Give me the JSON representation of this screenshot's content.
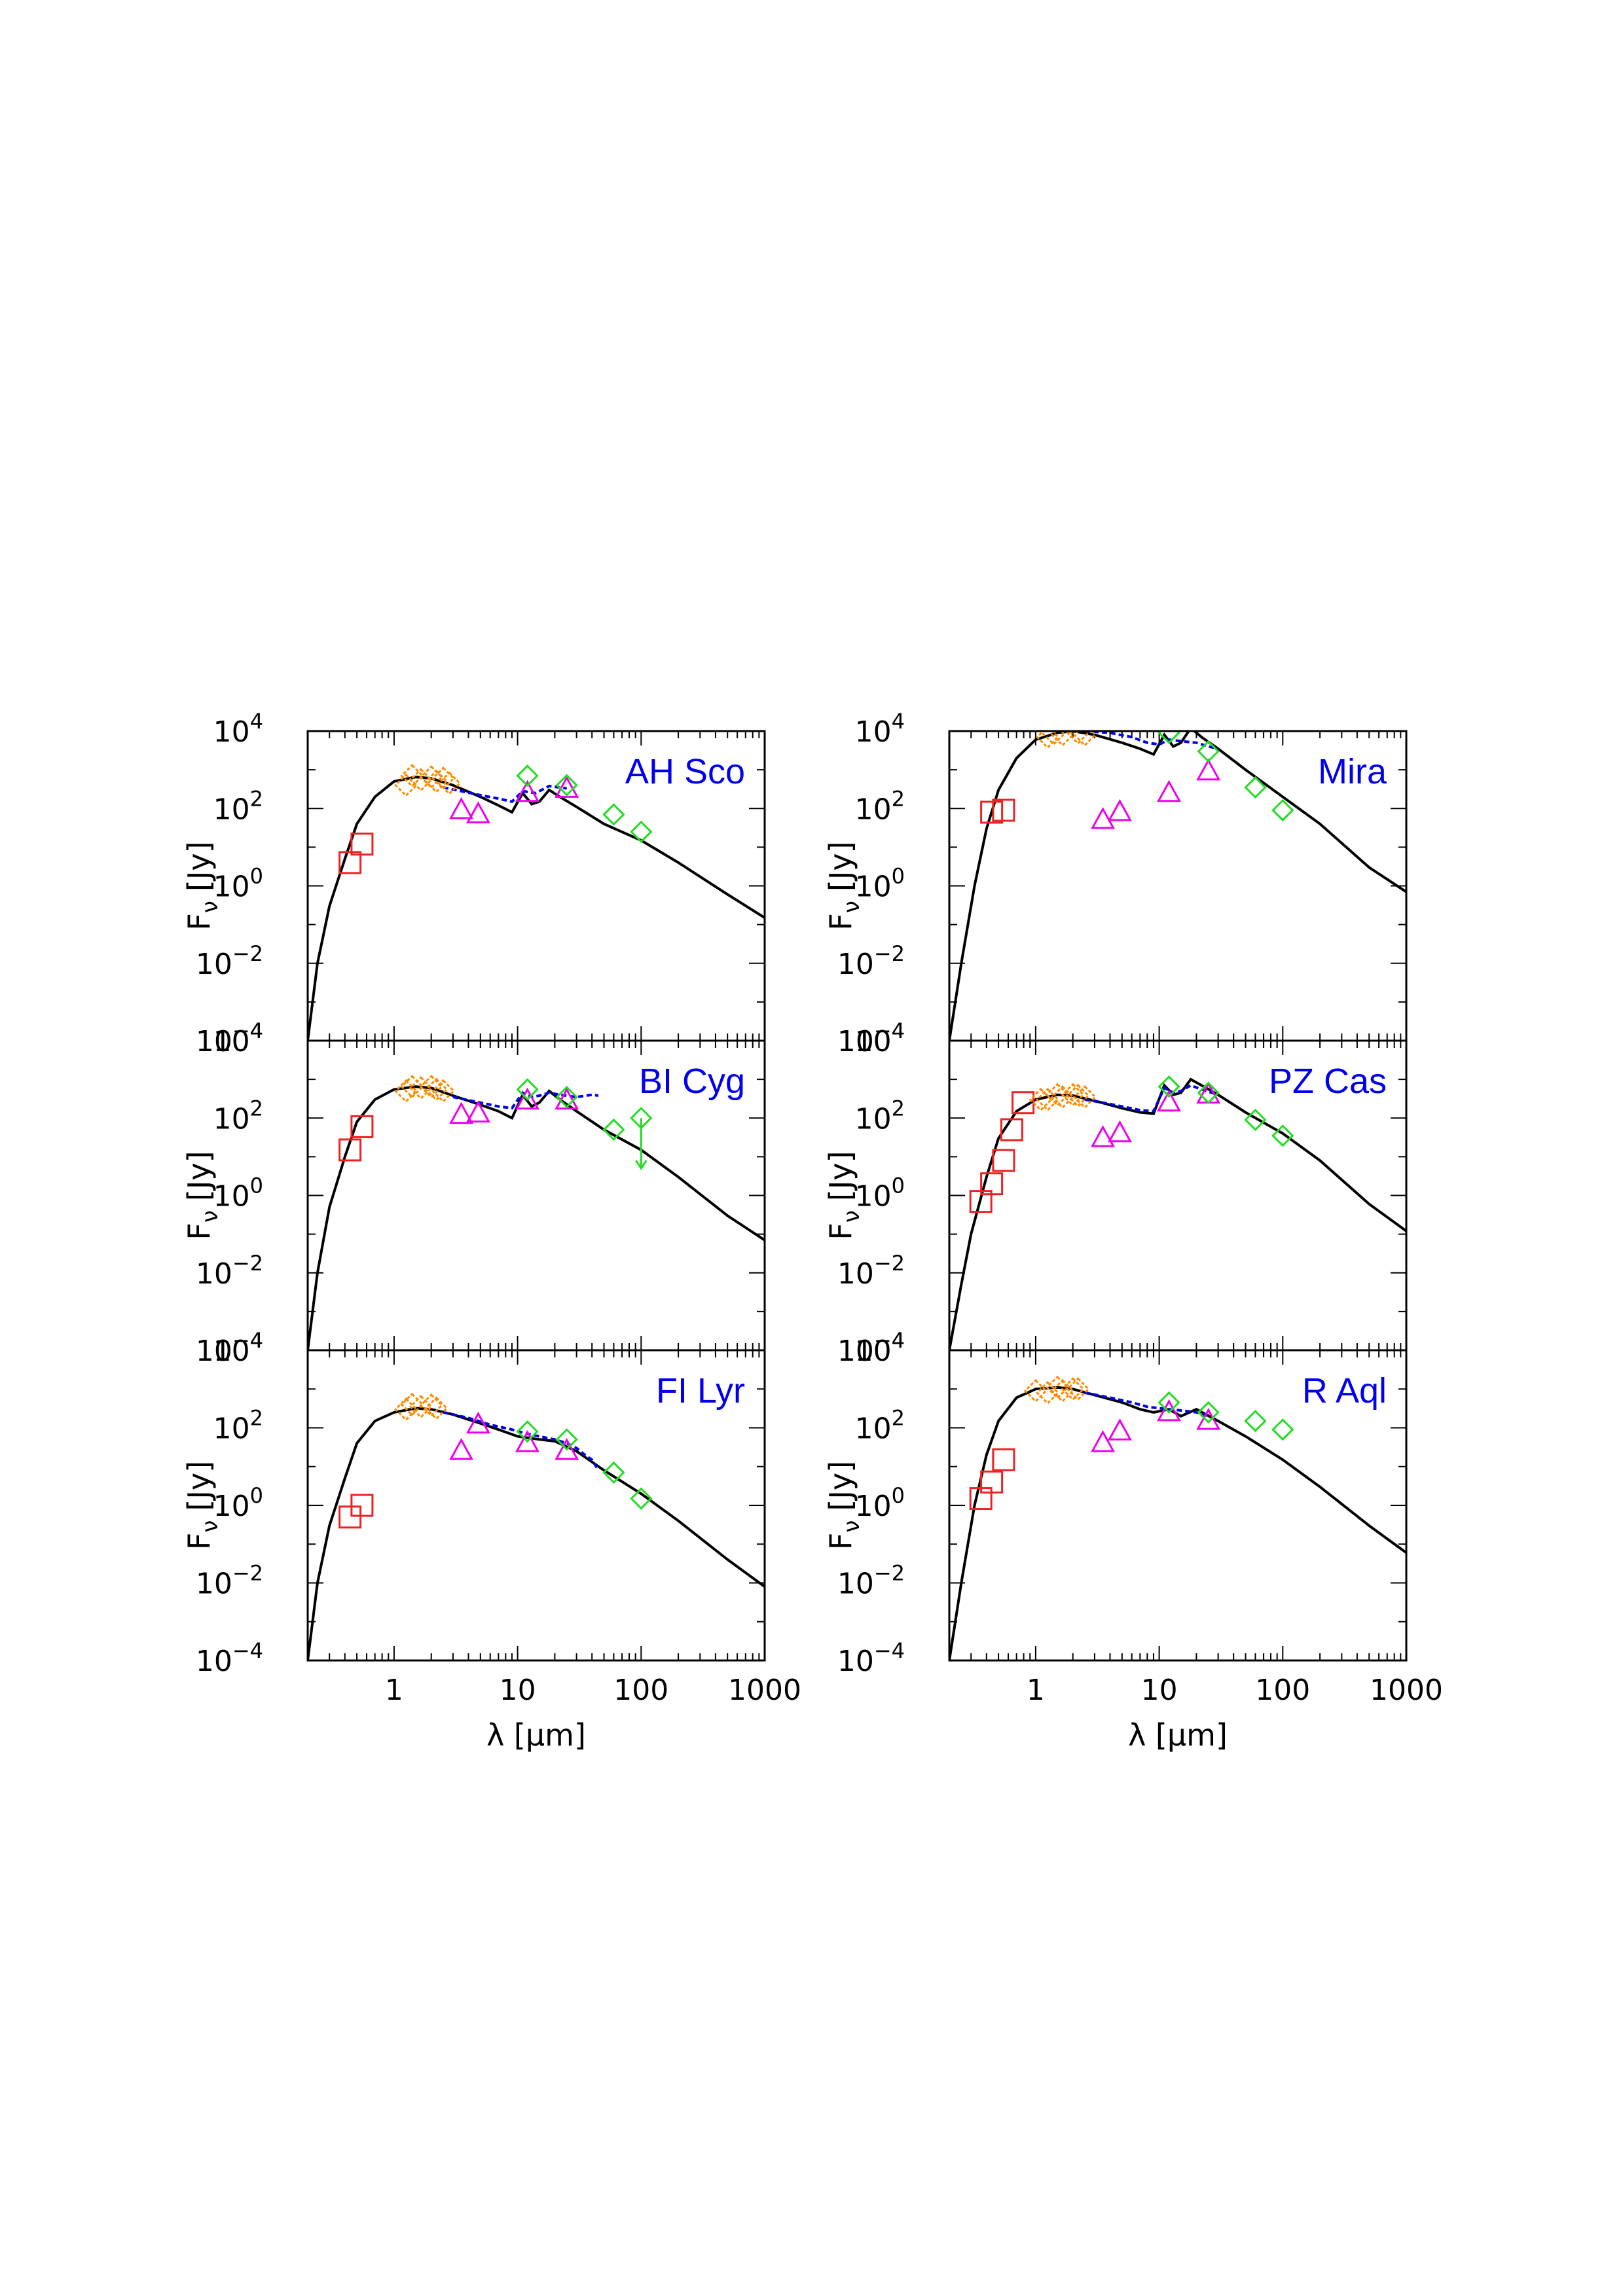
{
  "colors": {
    "model": "#000000",
    "optical": "#ee2222",
    "near_ir": "#ff8c00",
    "mid_ir": "#ee00ee",
    "iras": "#22dd22",
    "spectrum": "#0000ee"
  },
  "axes": {
    "xlabel": "λ [μm]",
    "ylabel_main": "F",
    "ylabel_sub": "ν",
    "ylabel_unit": "[Jy]",
    "x_tick_labels": [
      "1",
      "10",
      "100",
      "1000"
    ],
    "y_tick_base": "10",
    "y_tick_exponents": [
      "4",
      "2",
      "0",
      "−2",
      "−4"
    ]
  },
  "chart_data": [
    {
      "type": "scatter",
      "title": "AH Sco",
      "xscale": "log",
      "yscale": "log",
      "xlim": [
        0.2,
        1000
      ],
      "ylim": [
        0.0001,
        10000
      ],
      "model": [
        [
          0.2,
          0.0001
        ],
        [
          0.24,
          0.01
        ],
        [
          0.3,
          0.3
        ],
        [
          0.4,
          5
        ],
        [
          0.5,
          40
        ],
        [
          0.7,
          200
        ],
        [
          1,
          500
        ],
        [
          1.5,
          650
        ],
        [
          2,
          600
        ],
        [
          3,
          400
        ],
        [
          5,
          200
        ],
        [
          7,
          120
        ],
        [
          9,
          80
        ],
        [
          11,
          250
        ],
        [
          13,
          130
        ],
        [
          15,
          150
        ],
        [
          18,
          300
        ],
        [
          22,
          200
        ],
        [
          30,
          110
        ],
        [
          50,
          40
        ],
        [
          100,
          15
        ],
        [
          200,
          4
        ],
        [
          500,
          0.6
        ],
        [
          1000,
          0.15
        ]
      ],
      "spectrum": [
        [
          2.5,
          350
        ],
        [
          3.5,
          280
        ],
        [
          5,
          220
        ],
        [
          7,
          180
        ],
        [
          9,
          150
        ],
        [
          11,
          280
        ],
        [
          14,
          250
        ],
        [
          18,
          380
        ],
        [
          22,
          350
        ],
        [
          25,
          330
        ]
      ],
      "optical": [
        [
          0.44,
          4
        ],
        [
          0.55,
          12
        ]
      ],
      "near_ir": [
        [
          1.25,
          400
        ],
        [
          1.65,
          550
        ],
        [
          2.2,
          500
        ],
        [
          2.8,
          450
        ],
        [
          1.4,
          700
        ],
        [
          2,
          650
        ],
        [
          2.5,
          600
        ]
      ],
      "mid_ir": [
        [
          3.5,
          90
        ],
        [
          4.8,
          70
        ],
        [
          12,
          250
        ],
        [
          25,
          320
        ]
      ],
      "iras": [
        [
          12,
          700
        ],
        [
          25,
          400
        ],
        [
          60,
          70
        ],
        [
          100,
          25
        ]
      ],
      "upper_limits": []
    },
    {
      "type": "scatter",
      "title": "Mira",
      "xscale": "log",
      "yscale": "log",
      "xlim": [
        0.2,
        1000
      ],
      "ylim": [
        0.0001,
        10000
      ],
      "model": [
        [
          0.2,
          0.0001
        ],
        [
          0.25,
          0.01
        ],
        [
          0.32,
          1
        ],
        [
          0.4,
          30
        ],
        [
          0.5,
          300
        ],
        [
          0.7,
          2000
        ],
        [
          1,
          6000
        ],
        [
          1.5,
          9000
        ],
        [
          2,
          10000
        ],
        [
          3,
          8000
        ],
        [
          5,
          5000
        ],
        [
          7,
          3500
        ],
        [
          9,
          2500
        ],
        [
          11,
          8000
        ],
        [
          13,
          4000
        ],
        [
          15,
          5000
        ],
        [
          18,
          12000
        ],
        [
          22,
          7000
        ],
        [
          30,
          3500
        ],
        [
          50,
          1000
        ],
        [
          100,
          200
        ],
        [
          200,
          40
        ],
        [
          500,
          3
        ],
        [
          1000,
          0.7
        ]
      ],
      "spectrum": [
        [
          2.5,
          10000
        ],
        [
          4,
          9000
        ],
        [
          6,
          7000
        ],
        [
          8,
          5000
        ],
        [
          10,
          4500
        ],
        [
          12,
          6000
        ],
        [
          15,
          5500
        ],
        [
          20,
          5000
        ],
        [
          25,
          4000
        ],
        [
          30,
          3500
        ]
      ],
      "optical": [
        [
          0.44,
          80
        ],
        [
          0.55,
          90
        ]
      ],
      "near_ir": [
        [
          1.25,
          7000
        ],
        [
          1.65,
          8000
        ],
        [
          2.2,
          9000
        ],
        [
          1.4,
          8500
        ],
        [
          2.5,
          8000
        ]
      ],
      "mid_ir": [
        [
          3.5,
          50
        ],
        [
          4.8,
          80
        ],
        [
          12,
          250
        ],
        [
          25,
          900
        ]
      ],
      "iras": [
        [
          12,
          9000
        ],
        [
          25,
          3000
        ],
        [
          60,
          350
        ],
        [
          100,
          90
        ]
      ],
      "upper_limits": []
    },
    {
      "type": "scatter",
      "title": "BI Cyg",
      "xscale": "log",
      "yscale": "log",
      "xlim": [
        0.2,
        1000
      ],
      "ylim": [
        0.0001,
        10000
      ],
      "model": [
        [
          0.2,
          0.0001
        ],
        [
          0.24,
          0.01
        ],
        [
          0.3,
          0.5
        ],
        [
          0.4,
          10
        ],
        [
          0.5,
          80
        ],
        [
          0.7,
          300
        ],
        [
          1,
          550
        ],
        [
          1.5,
          650
        ],
        [
          2,
          600
        ],
        [
          3,
          380
        ],
        [
          5,
          220
        ],
        [
          7,
          150
        ],
        [
          9,
          100
        ],
        [
          11,
          400
        ],
        [
          13,
          200
        ],
        [
          15,
          250
        ],
        [
          18,
          500
        ],
        [
          22,
          300
        ],
        [
          30,
          150
        ],
        [
          50,
          50
        ],
        [
          100,
          15
        ],
        [
          200,
          3
        ],
        [
          500,
          0.3
        ],
        [
          1000,
          0.07
        ]
      ],
      "spectrum": [
        [
          3,
          350
        ],
        [
          5,
          250
        ],
        [
          7,
          200
        ],
        [
          9,
          180
        ],
        [
          11,
          450
        ],
        [
          13,
          350
        ],
        [
          15,
          380
        ],
        [
          18,
          450
        ],
        [
          22,
          400
        ],
        [
          30,
          350
        ],
        [
          40,
          400
        ],
        [
          45,
          380
        ]
      ],
      "optical": [
        [
          0.44,
          15
        ],
        [
          0.55,
          60
        ]
      ],
      "near_ir": [
        [
          1.25,
          500
        ],
        [
          1.65,
          600
        ],
        [
          2.2,
          550
        ],
        [
          1.4,
          650
        ],
        [
          2,
          650
        ],
        [
          2.5,
          500
        ]
      ],
      "mid_ir": [
        [
          3.5,
          120
        ],
        [
          4.8,
          130
        ],
        [
          12,
          280
        ],
        [
          25,
          280
        ]
      ],
      "iras": [
        [
          12,
          550
        ],
        [
          25,
          350
        ],
        [
          60,
          50
        ],
        [
          100,
          100
        ]
      ],
      "upper_limits": [
        [
          100,
          100,
          5
        ]
      ]
    },
    {
      "type": "scatter",
      "title": "PZ Cas",
      "xscale": "log",
      "yscale": "log",
      "xlim": [
        0.2,
        1000
      ],
      "ylim": [
        0.0001,
        10000
      ],
      "model": [
        [
          0.2,
          0.0001
        ],
        [
          0.25,
          0.005
        ],
        [
          0.3,
          0.1
        ],
        [
          0.4,
          3
        ],
        [
          0.5,
          30
        ],
        [
          0.7,
          150
        ],
        [
          1,
          300
        ],
        [
          1.5,
          400
        ],
        [
          2,
          380
        ],
        [
          3,
          280
        ],
        [
          5,
          180
        ],
        [
          7,
          140
        ],
        [
          9,
          130
        ],
        [
          11,
          700
        ],
        [
          13,
          400
        ],
        [
          15,
          450
        ],
        [
          18,
          1000
        ],
        [
          22,
          700
        ],
        [
          30,
          400
        ],
        [
          50,
          140
        ],
        [
          100,
          40
        ],
        [
          200,
          8
        ],
        [
          500,
          0.6
        ],
        [
          1000,
          0.12
        ]
      ],
      "spectrum": [
        [
          2.5,
          300
        ],
        [
          3.5,
          250
        ],
        [
          5,
          200
        ],
        [
          7,
          160
        ],
        [
          9,
          150
        ],
        [
          11,
          600
        ],
        [
          13,
          450
        ],
        [
          15,
          500
        ],
        [
          18,
          700
        ],
        [
          22,
          550
        ],
        [
          30,
          400
        ]
      ],
      "optical": [
        [
          0.36,
          0.7
        ],
        [
          0.44,
          2
        ],
        [
          0.55,
          8
        ],
        [
          0.64,
          50
        ],
        [
          0.79,
          250
        ]
      ],
      "near_ir": [
        [
          1.25,
          300
        ],
        [
          1.65,
          350
        ],
        [
          2.2,
          380
        ],
        [
          1.1,
          300
        ],
        [
          1.5,
          400
        ],
        [
          2,
          400
        ],
        [
          2.5,
          350
        ]
      ],
      "mid_ir": [
        [
          3.5,
          30
        ],
        [
          4.8,
          40
        ],
        [
          12,
          250
        ],
        [
          25,
          400
        ]
      ],
      "iras": [
        [
          12,
          650
        ],
        [
          25,
          450
        ],
        [
          60,
          90
        ],
        [
          100,
          35
        ]
      ],
      "upper_limits": []
    },
    {
      "type": "scatter",
      "title": "FI Lyr",
      "xscale": "log",
      "yscale": "log",
      "xlim": [
        0.2,
        1000
      ],
      "ylim": [
        0.0001,
        10000
      ],
      "model": [
        [
          0.2,
          0.0001
        ],
        [
          0.24,
          0.01
        ],
        [
          0.3,
          0.3
        ],
        [
          0.4,
          5
        ],
        [
          0.5,
          40
        ],
        [
          0.7,
          150
        ],
        [
          1,
          250
        ],
        [
          1.5,
          320
        ],
        [
          2,
          300
        ],
        [
          3,
          220
        ],
        [
          5,
          130
        ],
        [
          7,
          90
        ],
        [
          10,
          60
        ],
        [
          15,
          50
        ],
        [
          20,
          45
        ],
        [
          30,
          25
        ],
        [
          50,
          8
        ],
        [
          100,
          2
        ],
        [
          200,
          0.4
        ],
        [
          500,
          0.04
        ],
        [
          1000,
          0.008
        ]
      ],
      "spectrum": [
        [
          2.5,
          250
        ],
        [
          4,
          180
        ],
        [
          6,
          120
        ],
        [
          9,
          90
        ],
        [
          12,
          70
        ],
        [
          15,
          60
        ],
        [
          20,
          50
        ],
        [
          25,
          40
        ],
        [
          30,
          30
        ],
        [
          35,
          20
        ],
        [
          40,
          15
        ],
        [
          45,
          8
        ]
      ],
      "optical": [
        [
          0.44,
          0.5
        ],
        [
          0.55,
          1
        ]
      ],
      "near_ir": [
        [
          1.25,
          300
        ],
        [
          1.65,
          350
        ],
        [
          2.2,
          320
        ],
        [
          1.4,
          400
        ],
        [
          2,
          380
        ]
      ],
      "mid_ir": [
        [
          3.5,
          25
        ],
        [
          4.8,
          120
        ],
        [
          12,
          40
        ],
        [
          25,
          25
        ]
      ],
      "iras": [
        [
          12,
          80
        ],
        [
          25,
          50
        ],
        [
          60,
          7
        ],
        [
          100,
          1.5
        ]
      ],
      "upper_limits": []
    },
    {
      "type": "scatter",
      "title": "R Aql",
      "xscale": "log",
      "yscale": "log",
      "xlim": [
        0.2,
        1000
      ],
      "ylim": [
        0.0001,
        10000
      ],
      "model": [
        [
          0.2,
          0.0001
        ],
        [
          0.25,
          0.01
        ],
        [
          0.32,
          1
        ],
        [
          0.4,
          20
        ],
        [
          0.5,
          150
        ],
        [
          0.7,
          600
        ],
        [
          1,
          1000
        ],
        [
          1.5,
          1100
        ],
        [
          2,
          1000
        ],
        [
          3,
          700
        ],
        [
          5,
          450
        ],
        [
          7,
          300
        ],
        [
          9,
          250
        ],
        [
          12,
          300
        ],
        [
          15,
          200
        ],
        [
          20,
          300
        ],
        [
          30,
          150
        ],
        [
          50,
          60
        ],
        [
          100,
          15
        ],
        [
          200,
          3
        ],
        [
          500,
          0.3
        ],
        [
          1000,
          0.06
        ]
      ],
      "spectrum": [
        [
          2.5,
          800
        ],
        [
          4,
          600
        ],
        [
          6,
          450
        ],
        [
          8,
          350
        ],
        [
          10,
          320
        ],
        [
          12,
          300
        ],
        [
          15,
          280
        ],
        [
          20,
          250
        ],
        [
          25,
          200
        ]
      ],
      "optical": [
        [
          0.36,
          1.5
        ],
        [
          0.44,
          4
        ],
        [
          0.55,
          15
        ]
      ],
      "near_ir": [
        [
          1.25,
          800
        ],
        [
          1.65,
          900
        ],
        [
          2.2,
          1000
        ],
        [
          1,
          900
        ],
        [
          1.5,
          1100
        ],
        [
          2,
          1000
        ]
      ],
      "mid_ir": [
        [
          3.5,
          40
        ],
        [
          4.8,
          80
        ],
        [
          12,
          250
        ],
        [
          25,
          150
        ]
      ],
      "iras": [
        [
          12,
          450
        ],
        [
          25,
          250
        ],
        [
          60,
          150
        ],
        [
          100,
          90
        ]
      ],
      "upper_limits": []
    }
  ]
}
